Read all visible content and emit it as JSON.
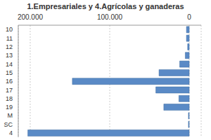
{
  "chart_data": {
    "type": "bar",
    "title": "1.Empresariales y 4.Agrícolas y ganaderas",
    "orientation": "horizontal",
    "categories": [
      "10",
      "11",
      "12",
      "13",
      "14",
      "15",
      "16",
      "17",
      "18",
      "19",
      "M",
      "SC",
      "4"
    ],
    "values": [
      3500,
      3500,
      2000,
      5000,
      12000,
      38000,
      147000,
      42000,
      13000,
      32000,
      1000,
      1000,
      203000
    ],
    "color": "#5a8ac6",
    "xlim": [
      -15000,
      215000
    ],
    "xticks": [
      {
        "value": 0,
        "label": "0"
      },
      {
        "value": 100000,
        "label": "100.000"
      },
      {
        "value": 200000,
        "label": "200.000"
      }
    ],
    "grid": true
  }
}
